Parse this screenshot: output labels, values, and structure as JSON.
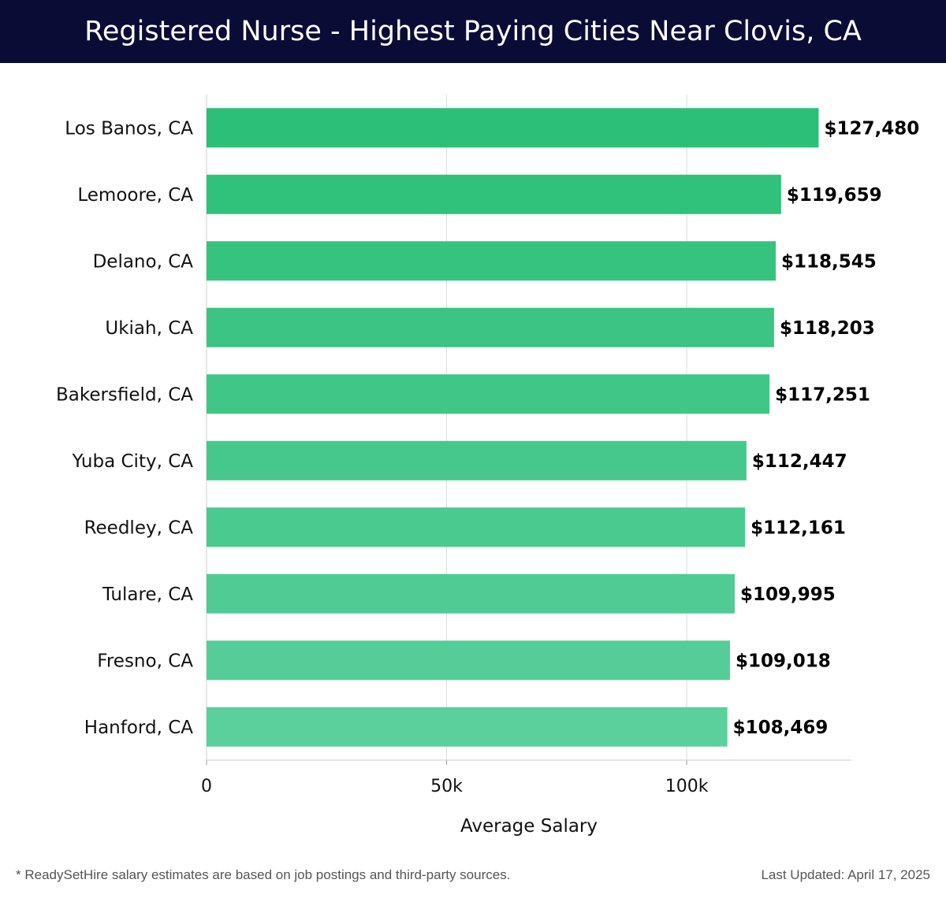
{
  "title": "Registered Nurse - Highest Paying Cities Near Clovis, CA",
  "footer": {
    "note": "* ReadySetHire salary estimates are based on job postings and third-party sources.",
    "updated": "Last Updated: April 17, 2025"
  },
  "chart_data": {
    "type": "bar",
    "orientation": "horizontal",
    "categories": [
      "Los Banos, CA",
      "Lemoore, CA",
      "Delano, CA",
      "Ukiah, CA",
      "Bakersfield, CA",
      "Yuba City, CA",
      "Reedley, CA",
      "Tulare, CA",
      "Fresno, CA",
      "Hanford, CA"
    ],
    "values": [
      127480,
      119659,
      118545,
      118203,
      117251,
      112447,
      112161,
      109995,
      109018,
      108469
    ],
    "value_labels": [
      "$127,480",
      "$119,659",
      "$118,545",
      "$118,203",
      "$117,251",
      "$112,447",
      "$112,161",
      "$109,995",
      "$109,018",
      "$108,469"
    ],
    "xlabel": "Average Salary",
    "ylabel": "",
    "xlim": [
      0,
      134300
    ],
    "xticks": [
      0,
      50000,
      100000
    ],
    "xtick_labels": [
      "0",
      "50k",
      "100k"
    ],
    "grid": "vertical",
    "colors": {
      "bar_top": "#2bbf77",
      "bar_bottom": "#5bcf9c",
      "grid": "#dddddd",
      "axis": "#cccccc",
      "text": "#111111"
    }
  }
}
